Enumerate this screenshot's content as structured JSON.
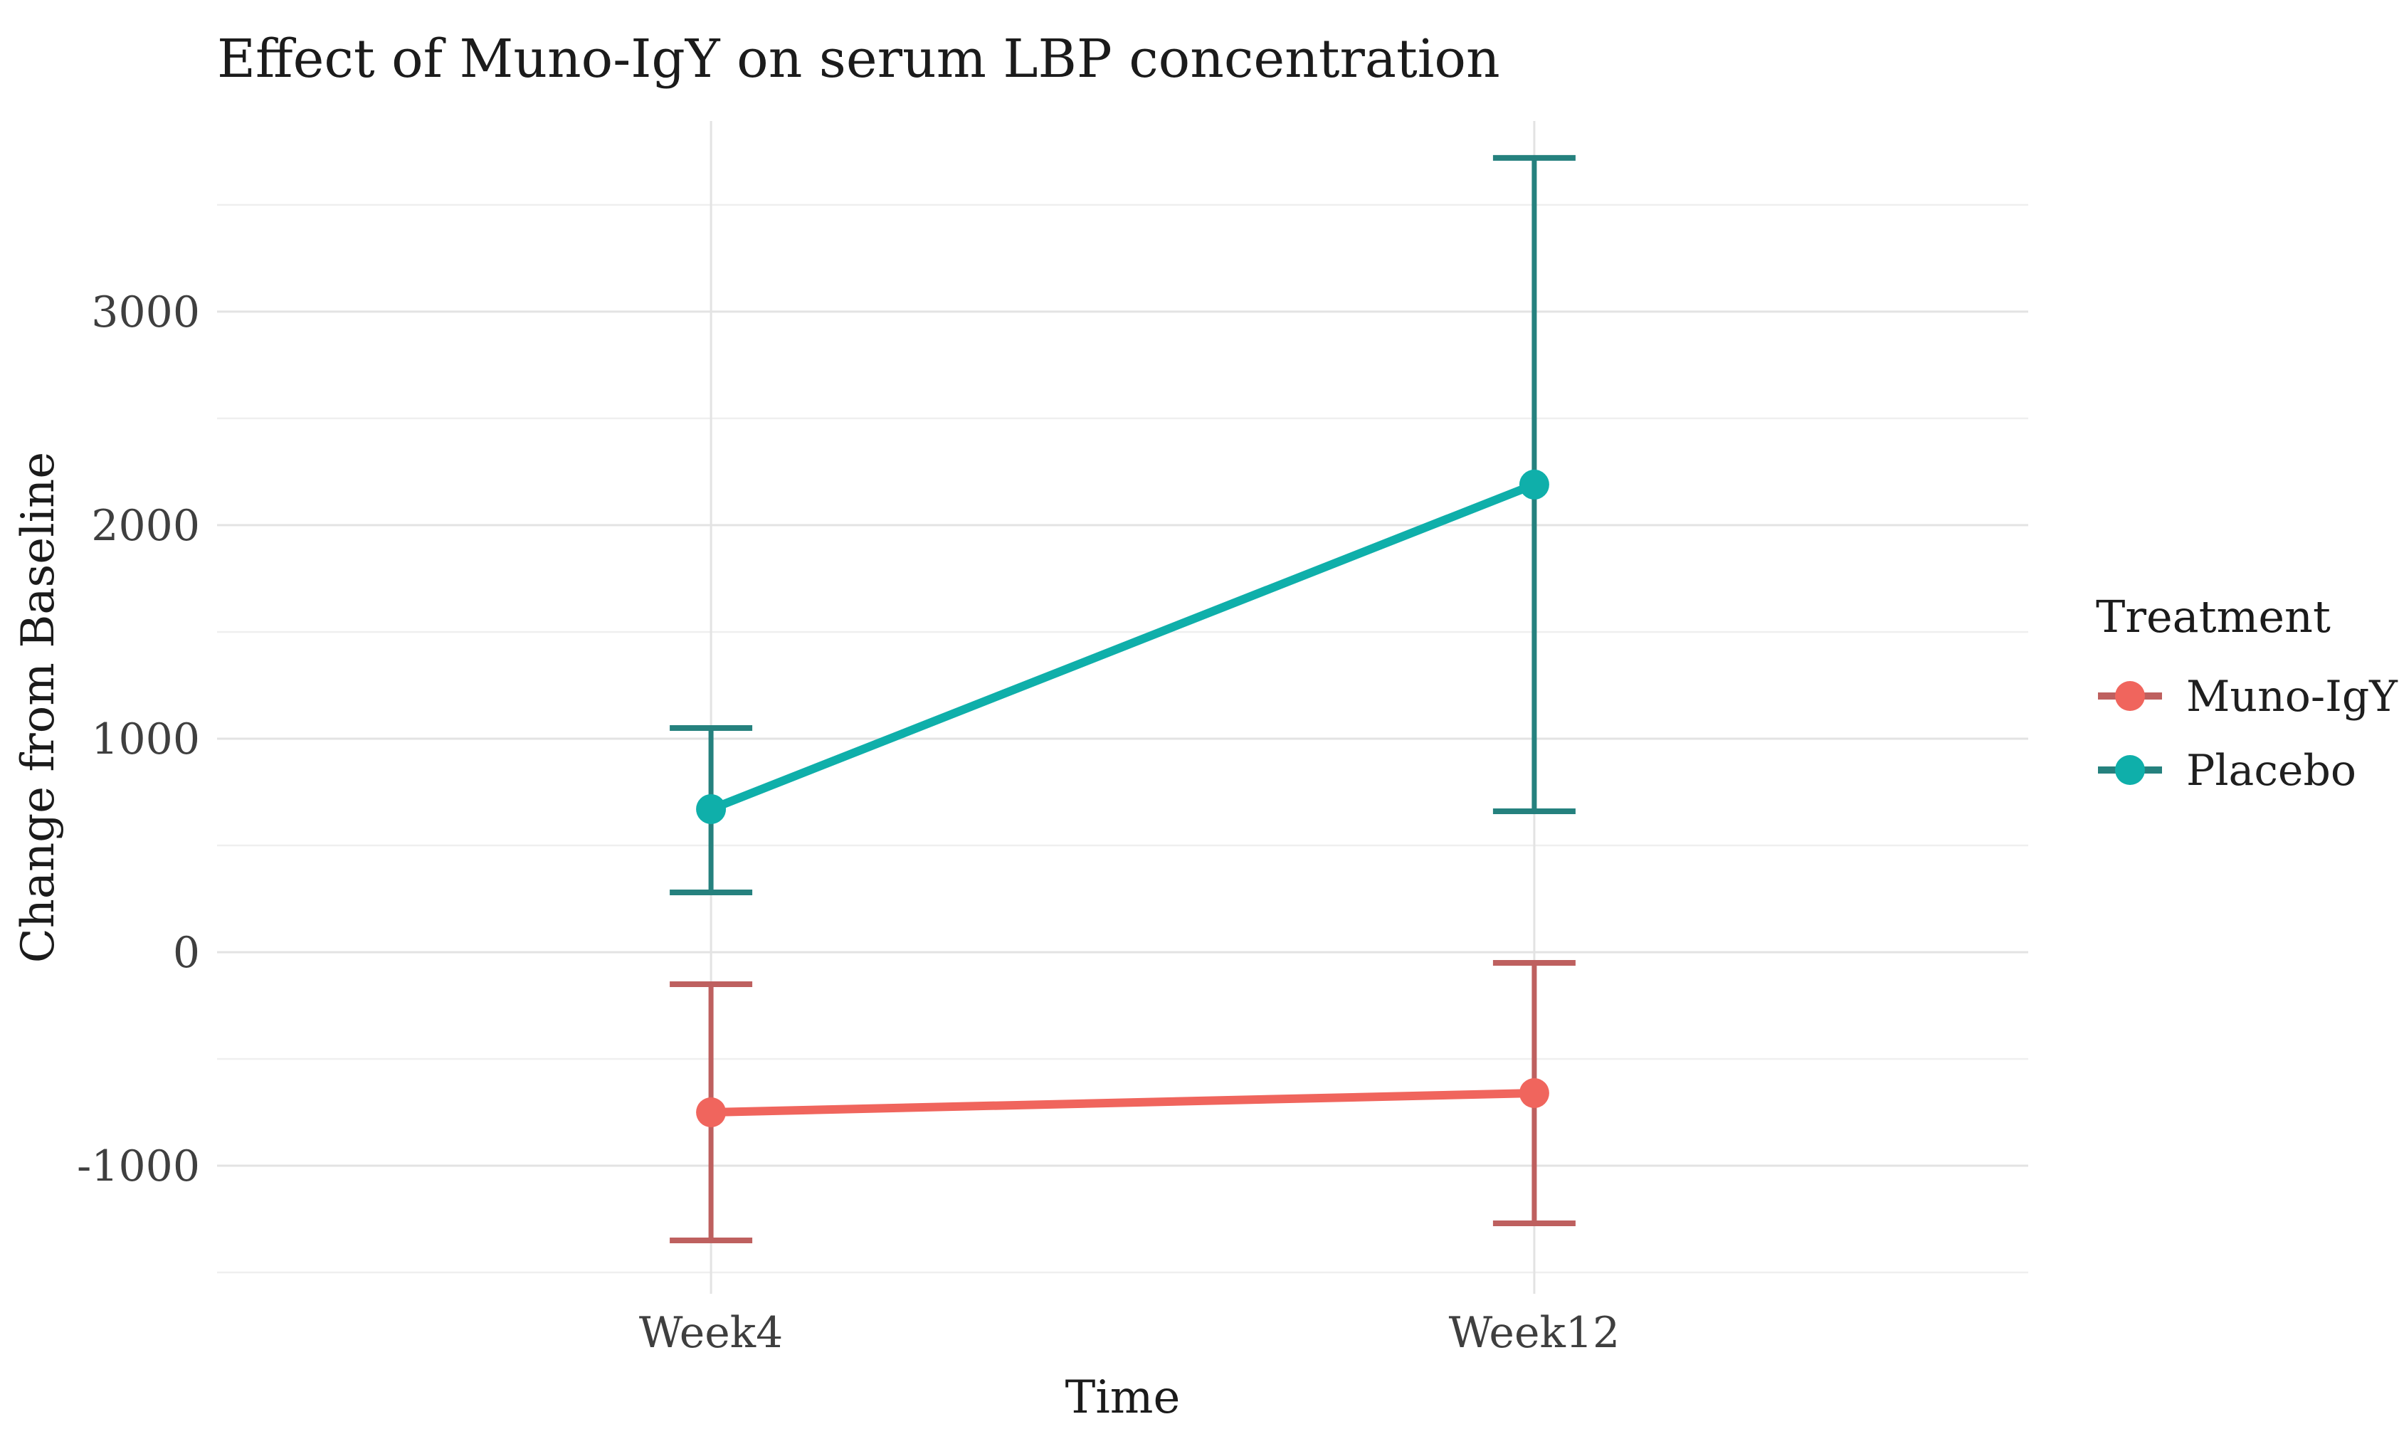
{
  "figure_title": "Effect of Muno-IgY on serum LBP concentration",
  "chart_data": {
    "type": "line",
    "title": "Effect of Muno-IgY on serum LBP concentration",
    "xlabel": "Time",
    "ylabel": "Change from Baseline",
    "categories": [
      "Week4",
      "Week12"
    ],
    "y_ticks": [
      3000,
      2000,
      1000,
      0,
      -1000
    ],
    "y_tick_labels": [
      "3000",
      "2000",
      "1000",
      "0",
      "-1000"
    ],
    "ylim": [
      -1600,
      3893
    ],
    "grid": "major+minor horizontal, major vertical at categories",
    "legend_title": "Treatment",
    "legend_position": "right",
    "background_color": "#ffffff",
    "major_grid_color": "#e3e3e3",
    "minor_grid_color": "#efefef",
    "series": [
      {
        "name": "Muno-IgY",
        "color": "#F0655D",
        "error_color": "#BE605F",
        "values": [
          -750,
          -660
        ],
        "error_low": [
          -1350,
          -1270
        ],
        "error_high": [
          -150,
          -50
        ]
      },
      {
        "name": "Placebo",
        "color": "#0FAFAA",
        "error_color": "#25817E",
        "values": [
          670,
          2190
        ],
        "error_low": [
          280,
          660
        ],
        "error_high": [
          1050,
          3720
        ]
      }
    ]
  }
}
